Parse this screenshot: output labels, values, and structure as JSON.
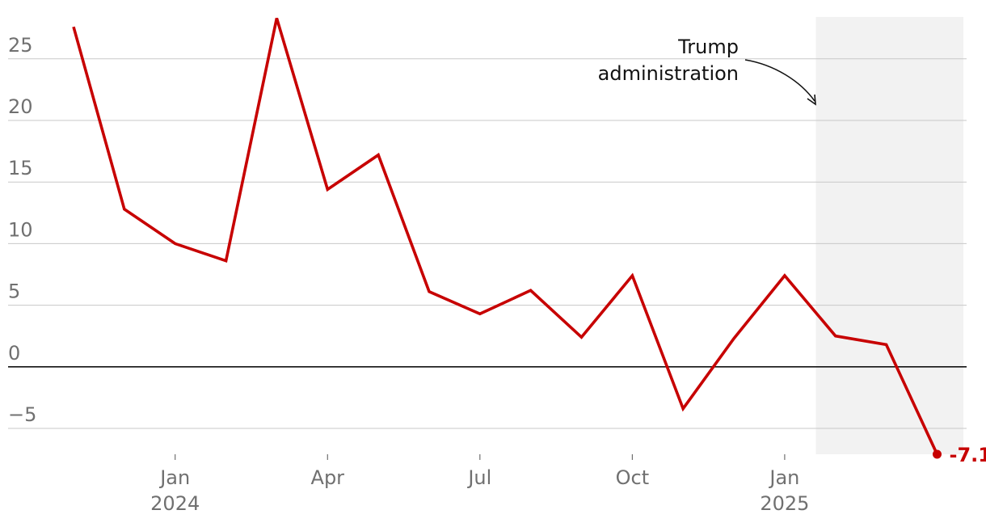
{
  "chart_data": {
    "type": "line",
    "title": "",
    "xlabel": "",
    "ylabel": "",
    "x": [
      "2023-11",
      "2023-12",
      "2024-01",
      "2024-02",
      "2024-03",
      "2024-04",
      "2024-05",
      "2024-06",
      "2024-07",
      "2024-08",
      "2024-09",
      "2024-10",
      "2024-11",
      "2024-12",
      "2025-01",
      "2025-02",
      "2025-03",
      "2025-04"
    ],
    "series": [
      {
        "values": [
          27.6,
          12.8,
          10.0,
          8.6,
          28.3,
          14.4,
          17.2,
          6.1,
          4.3,
          6.2,
          2.4,
          7.4,
          -3.4,
          2.3,
          7.4,
          2.5,
          1.8,
          -7.1
        ]
      }
    ],
    "ylim": [
      -7.1,
      28.4
    ],
    "yticks": [
      {
        "value": 25,
        "label": "25"
      },
      {
        "value": 20,
        "label": "20"
      },
      {
        "value": 15,
        "label": "15"
      },
      {
        "value": 10,
        "label": "10"
      },
      {
        "value": 5,
        "label": "5"
      },
      {
        "value": 0,
        "label": "0"
      },
      {
        "value": -5,
        "label": "−5"
      }
    ],
    "xticks": [
      {
        "at": "2024-01",
        "label": "Jan",
        "sublabel": "2024"
      },
      {
        "at": "2024-04",
        "label": "Apr",
        "sublabel": ""
      },
      {
        "at": "2024-07",
        "label": "Jul",
        "sublabel": ""
      },
      {
        "at": "2024-10",
        "label": "Oct",
        "sublabel": ""
      },
      {
        "at": "2025-01",
        "label": "Jan",
        "sublabel": "2025"
      }
    ],
    "grid": true,
    "shaded_region": {
      "from": "2025-01-20",
      "to": "2025-04"
    },
    "annotation": {
      "lines": [
        "Trump",
        "administration"
      ]
    },
    "end_label": "-7.1",
    "colors": {
      "line": "#c70000",
      "shade": "#f2f2f2",
      "grid": "#c8c8c8",
      "zero": "#121212",
      "tick": "#707070"
    }
  }
}
